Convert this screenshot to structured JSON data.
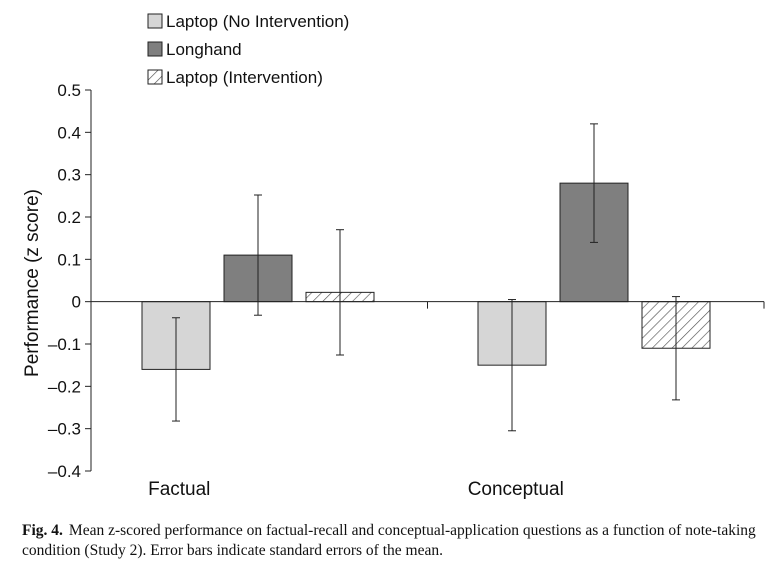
{
  "chart_data": {
    "type": "bar",
    "categories": [
      "Factual",
      "Conceptual"
    ],
    "series": [
      {
        "name": "Laptop (No Intervention)",
        "values": [
          -0.16,
          -0.15
        ],
        "error": [
          0.122,
          0.155
        ],
        "fill": "#d6d6d6",
        "pattern": "solid"
      },
      {
        "name": "Longhand",
        "values": [
          0.11,
          0.28
        ],
        "error": [
          0.142,
          0.14
        ],
        "fill": "#7f7f7f",
        "pattern": "solid"
      },
      {
        "name": "Laptop (Intervention)",
        "values": [
          0.022,
          -0.11
        ],
        "error": [
          0.148,
          0.122
        ],
        "fill": "#ffffff",
        "pattern": "hatched"
      }
    ],
    "ylabel": "Performance (z score)",
    "ylim": [
      -0.4,
      0.5
    ],
    "yticks": [
      0.5,
      0.4,
      0.3,
      0.2,
      0.1,
      0,
      -0.1,
      -0.2,
      -0.3,
      -0.4
    ],
    "ytick_labels": [
      "0.5",
      "0.4",
      "0.3",
      "0.2",
      "0.1",
      "0",
      "–0.1",
      "–0.2",
      "–0.3",
      "–0.4"
    ],
    "legend_position": "top-left",
    "grid": false,
    "error_bars": "standard errors of the mean"
  },
  "caption": {
    "label": "Fig. 4.",
    "text": "Mean z-scored performance on factual-recall and conceptual-application questions as a function of note-taking condition (Study 2). Error bars indicate standard errors of the mean."
  }
}
